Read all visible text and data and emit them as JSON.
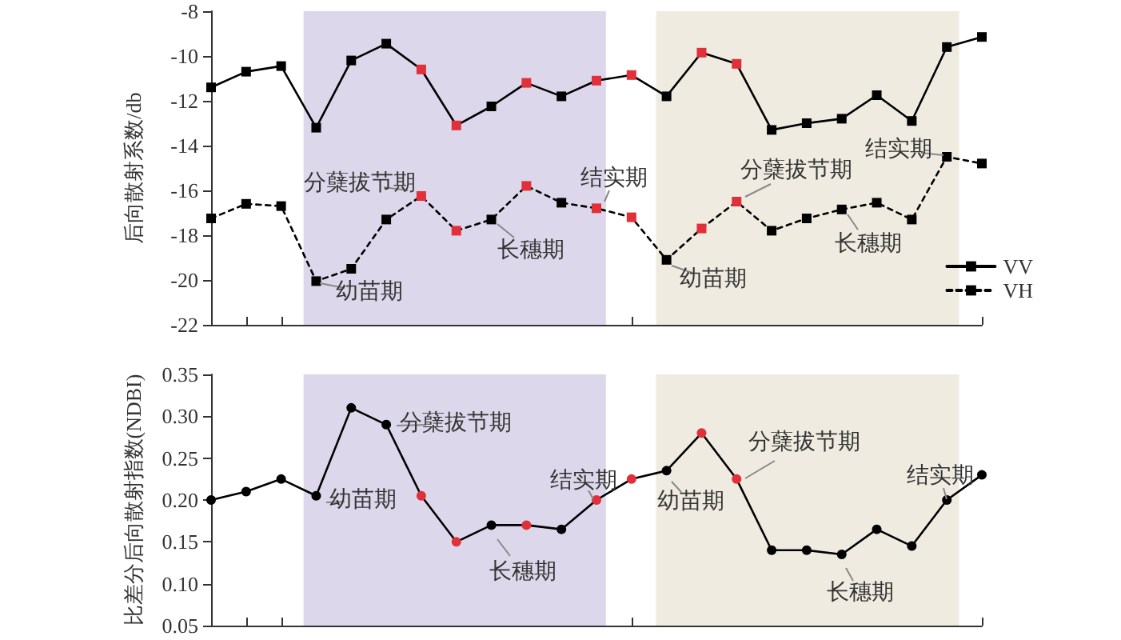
{
  "chart_data": [
    {
      "type": "line",
      "ylabel": "后向散射系数/db",
      "categories": [
        null,
        null,
        null,
        null,
        null,
        null,
        null,
        null,
        null,
        null,
        null,
        null,
        null,
        null,
        null,
        null,
        null,
        null,
        null,
        null,
        null,
        null,
        null
      ],
      "ylim": [
        -22,
        -8
      ],
      "yticks": [
        -22,
        -20,
        -18,
        -16,
        -14,
        -12,
        -10,
        -8
      ],
      "tick_labels": "y",
      "marker": "square",
      "legend": "bottom right",
      "grid": false,
      "series": [
        {
          "name": "VV",
          "color": "#000000",
          "line_style": "solid",
          "values": [
            -11.4,
            -10.7,
            -10.45,
            -13.2,
            -10.2,
            -9.45,
            -10.6,
            -13.1,
            -12.25,
            -11.2,
            -11.8,
            -11.1,
            -10.85,
            -11.8,
            -9.85,
            -10.35,
            -13.3,
            -13.0,
            -12.8,
            -11.75,
            -12.9,
            -9.6,
            -9.15
          ],
          "colors": [
            "#000000",
            "#000000",
            "#000000",
            "#000000",
            "#000000",
            "#000000",
            "#e0303a",
            "#e0303a",
            "#000000",
            "#e0303a",
            "#000000",
            "#e0303a",
            "#e0303a",
            "#000000",
            "#e0303a",
            "#e0303a",
            "#000000",
            "#000000",
            "#000000",
            "#000000",
            "#000000",
            "#000000",
            "#000000"
          ]
        },
        {
          "name": "VH",
          "color": "#000000",
          "line_style": "dashed",
          "values": [
            -17.25,
            -16.6,
            -16.7,
            -20.05,
            -19.5,
            -17.3,
            -16.25,
            -17.8,
            -17.3,
            -15.8,
            -16.55,
            -16.8,
            -17.2,
            -19.1,
            -17.7,
            -16.5,
            -17.8,
            -17.25,
            -16.85,
            -16.55,
            -17.3,
            -14.5,
            -14.8
          ],
          "colors": [
            "#000000",
            "#000000",
            "#000000",
            "#000000",
            "#000000",
            "#000000",
            "#e0303a",
            "#e0303a",
            "#000000",
            "#e0303a",
            "#000000",
            "#e0303a",
            "#e0303a",
            "#000000",
            "#e0303a",
            "#e0303a",
            "#000000",
            "#000000",
            "#000000",
            "#000000",
            "#000000",
            "#000000",
            "#000000"
          ]
        }
      ],
      "annotations": [
        "幼苗期",
        "分蘖拔节期",
        "长穗期",
        "结实期",
        "幼苗期",
        "分蘖拔节期",
        "长穗期",
        "结实期"
      ]
    },
    {
      "type": "line",
      "ylabel": "比差分后向散射指数(NDBI)",
      "categories": [
        null,
        null,
        null,
        null,
        null,
        null,
        null,
        null,
        null,
        null,
        null,
        null,
        null,
        null,
        null,
        null,
        null,
        null,
        null,
        null,
        null,
        null,
        null
      ],
      "ylim": [
        0.05,
        0.35
      ],
      "yticks": [
        0.05,
        {
          "value": 0.1,
          "label": "0.10"
        },
        0.15,
        {
          "value": 0.2,
          "label": "0.20"
        },
        0.25,
        {
          "value": 0.3,
          "label": "0.30"
        },
        0.35
      ],
      "tick_labels": "y",
      "marker": "circle",
      "grid": false,
      "series": [
        {
          "color": "#000000",
          "line_style": "solid",
          "values": [
            0.2,
            0.21,
            0.225,
            0.205,
            0.31,
            0.29,
            0.205,
            0.15,
            0.17,
            0.17,
            0.165,
            0.2,
            0.225,
            0.235,
            0.28,
            0.225,
            0.14,
            0.14,
            0.135,
            0.165,
            0.145,
            0.2,
            0.23
          ],
          "colors": [
            "#000000",
            "#000000",
            "#000000",
            "#000000",
            "#000000",
            "#000000",
            "#e0303a",
            "#e0303a",
            "#000000",
            "#e0303a",
            "#000000",
            "#e0303a",
            "#e0303a",
            "#000000",
            "#e0303a",
            "#e0303a",
            "#000000",
            "#000000",
            "#000000",
            "#000000",
            "#000000",
            "#000000",
            "#000000"
          ]
        }
      ],
      "annotations": [
        "幼苗期",
        "分蘖拔节期",
        "长穗期",
        "结实期",
        "幼苗期",
        "分蘖拔节期",
        "长穗期",
        "结实期"
      ]
    }
  ]
}
